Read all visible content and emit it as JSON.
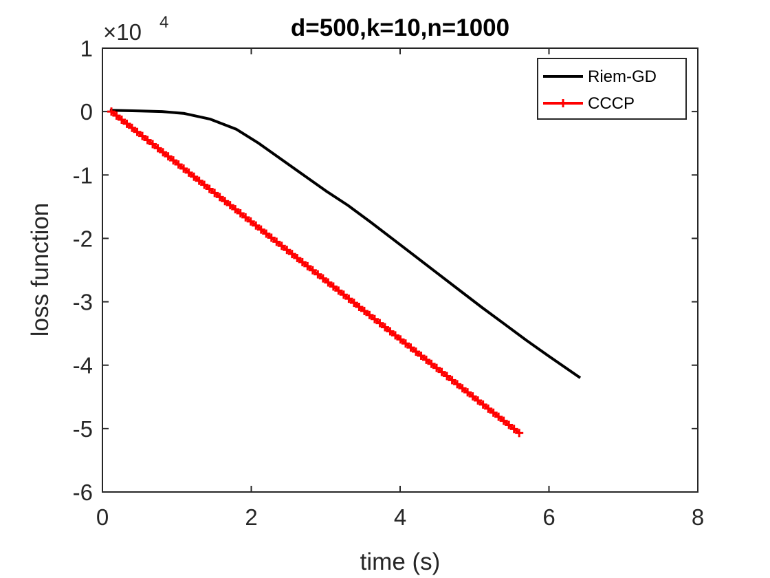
{
  "chart_data": {
    "type": "line",
    "title": "d=500,k=10,n=1000",
    "xlabel": "time (s)",
    "ylabel": "loss function",
    "xlim": [
      0,
      8
    ],
    "ylim": [
      -6,
      1
    ],
    "y_multiplier": "×10",
    "y_exponent": "4",
    "xticks": [
      0,
      2,
      4,
      6,
      8
    ],
    "yticks": [
      1,
      0,
      -1,
      -2,
      -3,
      -4,
      -5,
      -6
    ],
    "xtick_labels": [
      "0",
      "2",
      "4",
      "6",
      "8"
    ],
    "ytick_labels": [
      "1",
      "0",
      "-1",
      "-2",
      "-3",
      "-4",
      "-5",
      "-6"
    ],
    "legend_position": "top-right",
    "series": [
      {
        "name": "Riem-GD",
        "color": "#000000",
        "marker": "none",
        "x": [
          0.1,
          0.5,
          0.8,
          1.1,
          1.45,
          1.8,
          2.1,
          2.4,
          2.7,
          3.0,
          3.3,
          3.6,
          3.9,
          4.2,
          4.5,
          4.8,
          5.1,
          5.4,
          5.7,
          6.0,
          6.42
        ],
        "y": [
          0.02,
          0.01,
          0.0,
          -0.03,
          -0.12,
          -0.28,
          -0.5,
          -0.75,
          -1.0,
          -1.25,
          -1.48,
          -1.74,
          -2.01,
          -2.28,
          -2.55,
          -2.82,
          -3.09,
          -3.35,
          -3.61,
          -3.86,
          -4.2
        ]
      },
      {
        "name": "CCCP",
        "color": "#ff0000",
        "marker": "plus",
        "x_start": 0.12,
        "x_end": 5.6,
        "y_start": 0.0,
        "y_end": -5.07,
        "num_points": 80
      }
    ]
  }
}
